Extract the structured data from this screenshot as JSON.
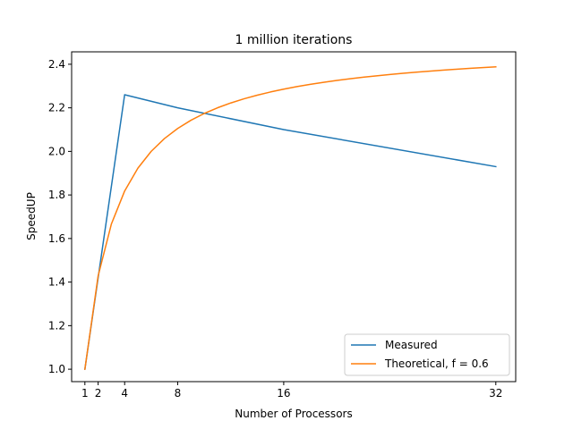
{
  "chart_data": {
    "type": "line",
    "title": "1 million iterations",
    "xlabel": "Number of Processors",
    "ylabel": "SpeedUP",
    "xlim": [
      0.0,
      33.5
    ],
    "ylim": [
      0.943,
      2.457
    ],
    "xticks": [
      1,
      2,
      4,
      8,
      16,
      32
    ],
    "yticks": [
      1.0,
      1.2,
      1.4,
      1.6,
      1.8,
      2.0,
      2.2,
      2.4
    ],
    "ytick_labels": [
      "1.0",
      "1.2",
      "1.4",
      "1.6",
      "1.8",
      "2.0",
      "2.2",
      "2.4"
    ],
    "grid": false,
    "legend_position": "lower-right",
    "series": [
      {
        "name": "Measured",
        "color": "#1f77b4",
        "x": [
          1,
          4,
          8,
          16,
          32
        ],
        "y": [
          1.0,
          2.26,
          2.2,
          2.1,
          1.93
        ]
      },
      {
        "name": "Theoretical, f = 0.6",
        "color": "#ff7f0e",
        "x": [
          1,
          2,
          3,
          4,
          5,
          6,
          7,
          8,
          9,
          10,
          11,
          12,
          13,
          14,
          15,
          16,
          17,
          18,
          19,
          20,
          21,
          22,
          23,
          24,
          25,
          26,
          27,
          28,
          29,
          30,
          31,
          32
        ],
        "y": [
          1.0,
          1.4286,
          1.6667,
          1.8182,
          1.9231,
          2.0,
          2.0588,
          2.1053,
          2.1429,
          2.1739,
          2.2,
          2.2222,
          2.2414,
          2.2581,
          2.2727,
          2.2857,
          2.2973,
          2.3077,
          2.3171,
          2.3256,
          2.3333,
          2.3404,
          2.3469,
          2.3529,
          2.3585,
          2.3636,
          2.3684,
          2.3729,
          2.377,
          2.381,
          2.3846,
          2.3881
        ]
      }
    ]
  }
}
